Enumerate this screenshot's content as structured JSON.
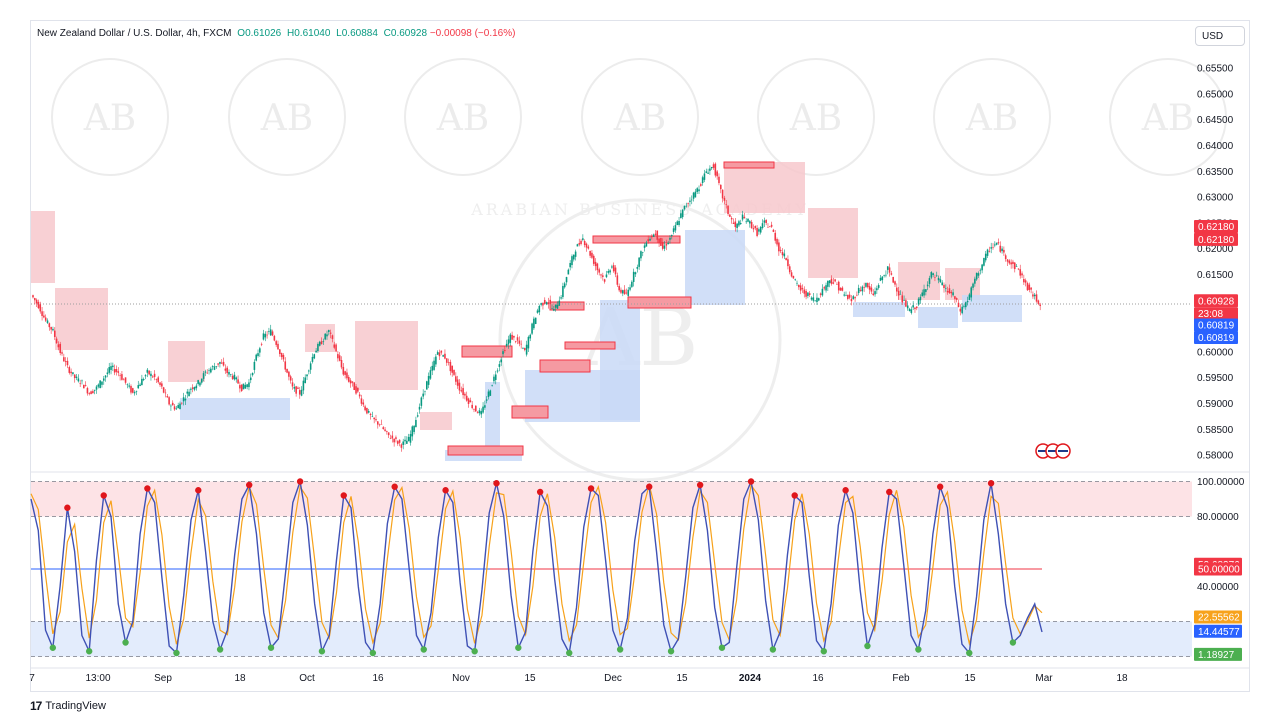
{
  "header": {
    "symbol": "New Zealand Dollar / U.S. Dollar, 4h, FXCM",
    "open": "O0.61026",
    "high": "H0.61040",
    "low": "L0.60884",
    "close": "C0.60928",
    "change": "−0.00098 (−0.16%)"
  },
  "currency_button": "USD",
  "footer": {
    "brand": "TradingView",
    "logo": "17"
  },
  "watermark": {
    "monogram": "AB",
    "text": "ARABIAN BUSINESS ACADEMY"
  },
  "colors": {
    "up_candle": "#089981",
    "down_candle": "#f23645",
    "supply_zone": "#f7c8cc",
    "demand_zone": "#c9d9f7",
    "stoch_k": "#3f51b5",
    "stoch_d": "#f7a21b",
    "overbought_fill": "#fde3e6",
    "oversold_fill": "#e3ecfc",
    "mid_red": "#f23645",
    "mid_blue": "#2962ff",
    "dot_red": "#e0161b",
    "dot_green": "#4caf50"
  },
  "chart_data": [
    {
      "type": "candlestick",
      "panel": "price",
      "y_ticks": [
        "0.65500",
        "0.65000",
        "0.64500",
        "0.64000",
        "0.63500",
        "0.63000",
        "0.62500",
        "0.62000",
        "0.61500",
        "0.61000",
        "0.60500",
        "0.60000",
        "0.59500",
        "0.59000",
        "0.58500",
        "0.58000"
      ],
      "ylim": [
        0.5775,
        0.6585
      ],
      "x_ticks": [
        "7",
        "13:00",
        "Sep",
        "18",
        "Oct",
        "16",
        "Nov",
        "15",
        "Dec",
        "15",
        "2024",
        "16",
        "Feb",
        "15",
        "Mar",
        "18"
      ],
      "price_tags": [
        {
          "label": "0.62180",
          "value": 0.6243,
          "color": "#f23645"
        },
        {
          "label": "0.62180",
          "value": 0.6218,
          "color": "#f23645"
        },
        {
          "label": "0.60928",
          "value": 0.6099,
          "color": "#f23645"
        },
        {
          "label": "23:08",
          "value": 0.6074,
          "color": "#f23645"
        },
        {
          "label": "0.60819",
          "value": 0.6052,
          "color": "#2962ff"
        },
        {
          "label": "0.60819",
          "value": 0.6028,
          "color": "#2962ff"
        }
      ],
      "current_price": 0.60928,
      "close_path": [
        [
          0,
          0.611
        ],
        [
          2,
          0.609
        ],
        [
          4,
          0.606
        ],
        [
          6,
          0.604
        ],
        [
          8,
          0.6
        ],
        [
          10,
          0.597
        ],
        [
          12,
          0.595
        ],
        [
          14,
          0.594
        ],
        [
          16,
          0.592
        ],
        [
          18,
          0.593
        ],
        [
          20,
          0.595
        ],
        [
          22,
          0.597
        ],
        [
          24,
          0.596
        ],
        [
          26,
          0.594
        ],
        [
          28,
          0.592
        ],
        [
          30,
          0.594
        ],
        [
          32,
          0.596
        ],
        [
          34,
          0.595
        ],
        [
          36,
          0.593
        ],
        [
          38,
          0.59
        ],
        [
          40,
          0.589
        ],
        [
          42,
          0.591
        ],
        [
          44,
          0.593
        ],
        [
          46,
          0.594
        ],
        [
          48,
          0.596
        ],
        [
          50,
          0.597
        ],
        [
          52,
          0.598
        ],
        [
          54,
          0.596
        ],
        [
          56,
          0.595
        ],
        [
          58,
          0.593
        ],
        [
          60,
          0.594
        ],
        [
          62,
          0.599
        ],
        [
          64,
          0.603
        ],
        [
          66,
          0.604
        ],
        [
          68,
          0.601
        ],
        [
          70,
          0.597
        ],
        [
          72,
          0.593
        ],
        [
          74,
          0.592
        ],
        [
          76,
          0.596
        ],
        [
          78,
          0.6
        ],
        [
          80,
          0.602
        ],
        [
          82,
          0.604
        ],
        [
          84,
          0.6
        ],
        [
          86,
          0.596
        ],
        [
          88,
          0.594
        ],
        [
          90,
          0.592
        ],
        [
          92,
          0.589
        ],
        [
          94,
          0.587
        ],
        [
          96,
          0.586
        ],
        [
          98,
          0.584
        ],
        [
          100,
          0.583
        ],
        [
          102,
          0.582
        ],
        [
          104,
          0.583
        ],
        [
          106,
          0.587
        ],
        [
          108,
          0.592
        ],
        [
          110,
          0.596
        ],
        [
          112,
          0.6
        ],
        [
          114,
          0.599
        ],
        [
          116,
          0.596
        ],
        [
          118,
          0.593
        ],
        [
          120,
          0.591
        ],
        [
          122,
          0.589
        ],
        [
          124,
          0.588
        ],
        [
          126,
          0.592
        ],
        [
          128,
          0.596
        ],
        [
          130,
          0.6
        ],
        [
          132,
          0.603
        ],
        [
          134,
          0.602
        ],
        [
          136,
          0.6
        ],
        [
          138,
          0.605
        ],
        [
          140,
          0.609
        ],
        [
          142,
          0.61
        ],
        [
          144,
          0.608
        ],
        [
          146,
          0.611
        ],
        [
          148,
          0.616
        ],
        [
          150,
          0.62
        ],
        [
          152,
          0.622
        ],
        [
          154,
          0.619
        ],
        [
          156,
          0.616
        ],
        [
          158,
          0.614
        ],
        [
          160,
          0.617
        ],
        [
          162,
          0.612
        ],
        [
          164,
          0.611
        ],
        [
          166,
          0.615
        ],
        [
          168,
          0.619
        ],
        [
          170,
          0.622
        ],
        [
          172,
          0.623
        ],
        [
          174,
          0.62
        ],
        [
          176,
          0.622
        ],
        [
          178,
          0.625
        ],
        [
          180,
          0.628
        ],
        [
          182,
          0.63
        ],
        [
          184,
          0.632
        ],
        [
          186,
          0.635
        ],
        [
          188,
          0.636
        ],
        [
          190,
          0.631
        ],
        [
          192,
          0.627
        ],
        [
          194,
          0.624
        ],
        [
          196,
          0.626
        ],
        [
          198,
          0.625
        ],
        [
          200,
          0.623
        ],
        [
          202,
          0.625
        ],
        [
          204,
          0.624
        ],
        [
          206,
          0.62
        ],
        [
          208,
          0.618
        ],
        [
          210,
          0.614
        ],
        [
          212,
          0.612
        ],
        [
          214,
          0.611
        ],
        [
          216,
          0.61
        ],
        [
          218,
          0.612
        ],
        [
          220,
          0.614
        ],
        [
          222,
          0.613
        ],
        [
          224,
          0.611
        ],
        [
          226,
          0.61
        ],
        [
          228,
          0.612
        ],
        [
          230,
          0.613
        ],
        [
          232,
          0.611
        ],
        [
          234,
          0.614
        ],
        [
          236,
          0.616
        ],
        [
          238,
          0.613
        ],
        [
          240,
          0.61
        ],
        [
          242,
          0.608
        ],
        [
          244,
          0.609
        ],
        [
          246,
          0.612
        ],
        [
          248,
          0.615
        ],
        [
          250,
          0.614
        ],
        [
          252,
          0.612
        ],
        [
          254,
          0.611
        ],
        [
          256,
          0.608
        ],
        [
          258,
          0.61
        ],
        [
          260,
          0.614
        ],
        [
          262,
          0.617
        ],
        [
          264,
          0.62
        ],
        [
          266,
          0.621
        ],
        [
          268,
          0.619
        ],
        [
          270,
          0.617
        ],
        [
          272,
          0.616
        ],
        [
          274,
          0.613
        ],
        [
          276,
          0.611
        ],
        [
          278,
          0.6093
        ]
      ]
    },
    {
      "type": "line",
      "panel": "stochastic",
      "y_ticks": [
        "100.00000",
        "80.00000",
        "40.00000"
      ],
      "ylim": [
        -2,
        102
      ],
      "levels": {
        "upper": 100,
        "overbought": 80,
        "middle": 50,
        "oversold": 20,
        "lower": 0
      },
      "value_tags": [
        {
          "label": "52.68376",
          "value": 52.7,
          "color": "#f23645"
        },
        {
          "label": "50.00000",
          "value": 50,
          "color": "#f23645"
        },
        {
          "label": "22.55562",
          "value": 22.6,
          "color": "#f7a21b"
        },
        {
          "label": "14.44577",
          "value": 14.4,
          "color": "#2962ff"
        },
        {
          "label": "1.18927",
          "value": 1.2,
          "color": "#4caf50"
        }
      ],
      "series": [
        {
          "name": "",
          "values": [
            90,
            72,
            15,
            5,
            40,
            85,
            60,
            12,
            3,
            55,
            92,
            80,
            30,
            8,
            20,
            70,
            96,
            88,
            45,
            6,
            2,
            35,
            78,
            95,
            60,
            20,
            4,
            15,
            58,
            90,
            98,
            70,
            25,
            5,
            10,
            48,
            88,
            100,
            75,
            30,
            3,
            12,
            55,
            92,
            85,
            40,
            8,
            2,
            30,
            76,
            97,
            90,
            50,
            12,
            4,
            25,
            68,
            95,
            88,
            42,
            6,
            3,
            38,
            82,
            99,
            80,
            35,
            5,
            14,
            60,
            94,
            86,
            44,
            10,
            2,
            28,
            74,
            96,
            92,
            55,
            15,
            4,
            22,
            66,
            93,
            97,
            60,
            18,
            3,
            10,
            45,
            85,
            98,
            72,
            28,
            5,
            8,
            50,
            90,
            100,
            78,
            32,
            4,
            14,
            58,
            92,
            88,
            46,
            9,
            3,
            30,
            75,
            95,
            82,
            38,
            6,
            18,
            62,
            94,
            90,
            52,
            12,
            4,
            26,
            70,
            97,
            85,
            40,
            7,
            2,
            34,
            78,
            99,
            70,
            30,
            8,
            12,
            22,
            30,
            14
          ]
        }
      ]
    }
  ]
}
